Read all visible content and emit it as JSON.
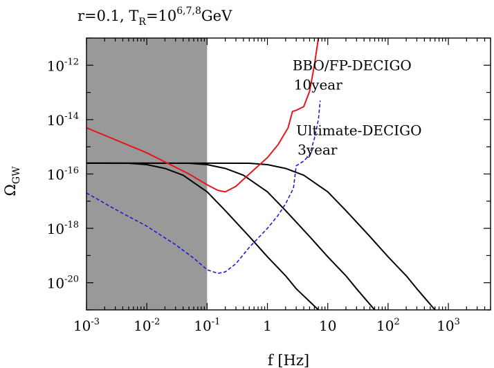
{
  "chart_data": {
    "type": "line",
    "title": "r=0.1, T_R=10^{6,7,8}GeV",
    "title_parts": {
      "prefix": "r=0.1, T",
      "sub": "R",
      "mid": "=10",
      "sup": "6,7,8",
      "suffix": "GeV"
    },
    "xlabel": "f [Hz]",
    "ylabel": {
      "base": "Ω",
      "sub": "GW"
    },
    "x_scale": "log",
    "y_scale": "log",
    "xlim": [
      0.001,
      5000
    ],
    "ylim": [
      1e-21,
      1e-11
    ],
    "grid": false,
    "legend": "none",
    "x_ticks": [
      {
        "value": 0.001,
        "base": "10",
        "exp": "-3"
      },
      {
        "value": 0.01,
        "base": "10",
        "exp": "-2"
      },
      {
        "value": 0.1,
        "base": "10",
        "exp": "-1"
      },
      {
        "value": 1,
        "base": "1",
        "exp": ""
      },
      {
        "value": 10,
        "base": "10",
        "exp": ""
      },
      {
        "value": 100,
        "base": "10",
        "exp": "2"
      },
      {
        "value": 1000,
        "base": "10",
        "exp": "3"
      }
    ],
    "y_ticks": [
      {
        "value": 1e-12,
        "base": "10",
        "exp": "-12"
      },
      {
        "value": 1e-14,
        "base": "10",
        "exp": "-14"
      },
      {
        "value": 1e-16,
        "base": "10",
        "exp": "-16"
      },
      {
        "value": 1e-18,
        "base": "10",
        "exp": "-18"
      },
      {
        "value": 1e-20,
        "base": "10",
        "exp": "-20"
      }
    ],
    "shaded_region": {
      "x": [
        0.001,
        0.1
      ],
      "color": "#999999"
    },
    "series": [
      {
        "style": "solid",
        "color": "#000000",
        "x": [
          0.001,
          0.002,
          0.005,
          0.01,
          0.02,
          0.04,
          0.1,
          0.2,
          0.5,
          1,
          2,
          3,
          7
        ],
        "y": [
          2.5e-16,
          2.5e-16,
          2.48e-16,
          2.2e-16,
          1.6e-16,
          9e-17,
          2.2e-17,
          4.5e-18,
          5e-19,
          9e-20,
          1.8e-20,
          6e-21,
          1e-21
        ]
      },
      {
        "style": "solid",
        "color": "#000000",
        "x": [
          0.001,
          0.01,
          0.05,
          0.1,
          0.2,
          0.4,
          1,
          2,
          5,
          10,
          20,
          30,
          60
        ],
        "y": [
          2.5e-16,
          2.5e-16,
          2.48e-16,
          2.2e-16,
          1.6e-16,
          9e-17,
          2.2e-17,
          4.5e-18,
          5e-19,
          9e-20,
          1.8e-20,
          6e-21,
          1e-21
        ]
      },
      {
        "style": "solid",
        "color": "#000000",
        "x": [
          0.001,
          0.1,
          0.5,
          1,
          2,
          4,
          10,
          20,
          50,
          100,
          200,
          300,
          600
        ],
        "y": [
          2.5e-16,
          2.5e-16,
          2.48e-16,
          2.2e-16,
          1.6e-16,
          9e-17,
          2.2e-17,
          4.5e-18,
          5e-19,
          9e-20,
          1.8e-20,
          6e-21,
          1e-21
        ]
      },
      {
        "name": "BBO/FP-DECIGO 10year",
        "style": "solid",
        "color": "#e8141c",
        "x": [
          0.001,
          0.01,
          0.05,
          0.1,
          0.15,
          0.2,
          0.3,
          0.5,
          1,
          1.5,
          2.2,
          2.6,
          3,
          4,
          5,
          6,
          7,
          7.5
        ],
        "y": [
          5e-15,
          6e-16,
          1e-16,
          4e-17,
          2.5e-17,
          2.2e-17,
          3.5e-17,
          1e-16,
          4e-16,
          1.2e-15,
          5e-15,
          2e-14,
          2.2e-14,
          3e-14,
          1.1e-13,
          1e-12,
          1e-11,
          5e-11
        ]
      },
      {
        "name": "Ultimate-DECIGO 3year",
        "style": "dashed",
        "color": "#1b1bd4",
        "x": [
          0.001,
          0.003,
          0.01,
          0.03,
          0.06,
          0.1,
          0.15,
          0.2,
          0.3,
          0.5,
          1,
          1.5,
          2,
          2.7,
          3,
          4,
          5,
          6,
          7,
          7.5
        ],
        "y": [
          2e-17,
          5e-18,
          1.2e-18,
          2.5e-19,
          8e-20,
          3e-20,
          2.2e-20,
          2.5e-20,
          5e-20,
          2e-19,
          1e-18,
          3e-18,
          8e-18,
          3e-17,
          2e-16,
          3e-16,
          5e-16,
          2e-15,
          1e-14,
          5e-14
        ]
      }
    ],
    "annotations": [
      {
        "line1": "BBO/FP-DECIGO",
        "line2": "10year",
        "x": 2.6,
        "y": 1e-12
      },
      {
        "line1": "Ultimate-DECIGO",
        "line2": "3year",
        "x": 3.0,
        "y": 4e-15
      }
    ]
  }
}
